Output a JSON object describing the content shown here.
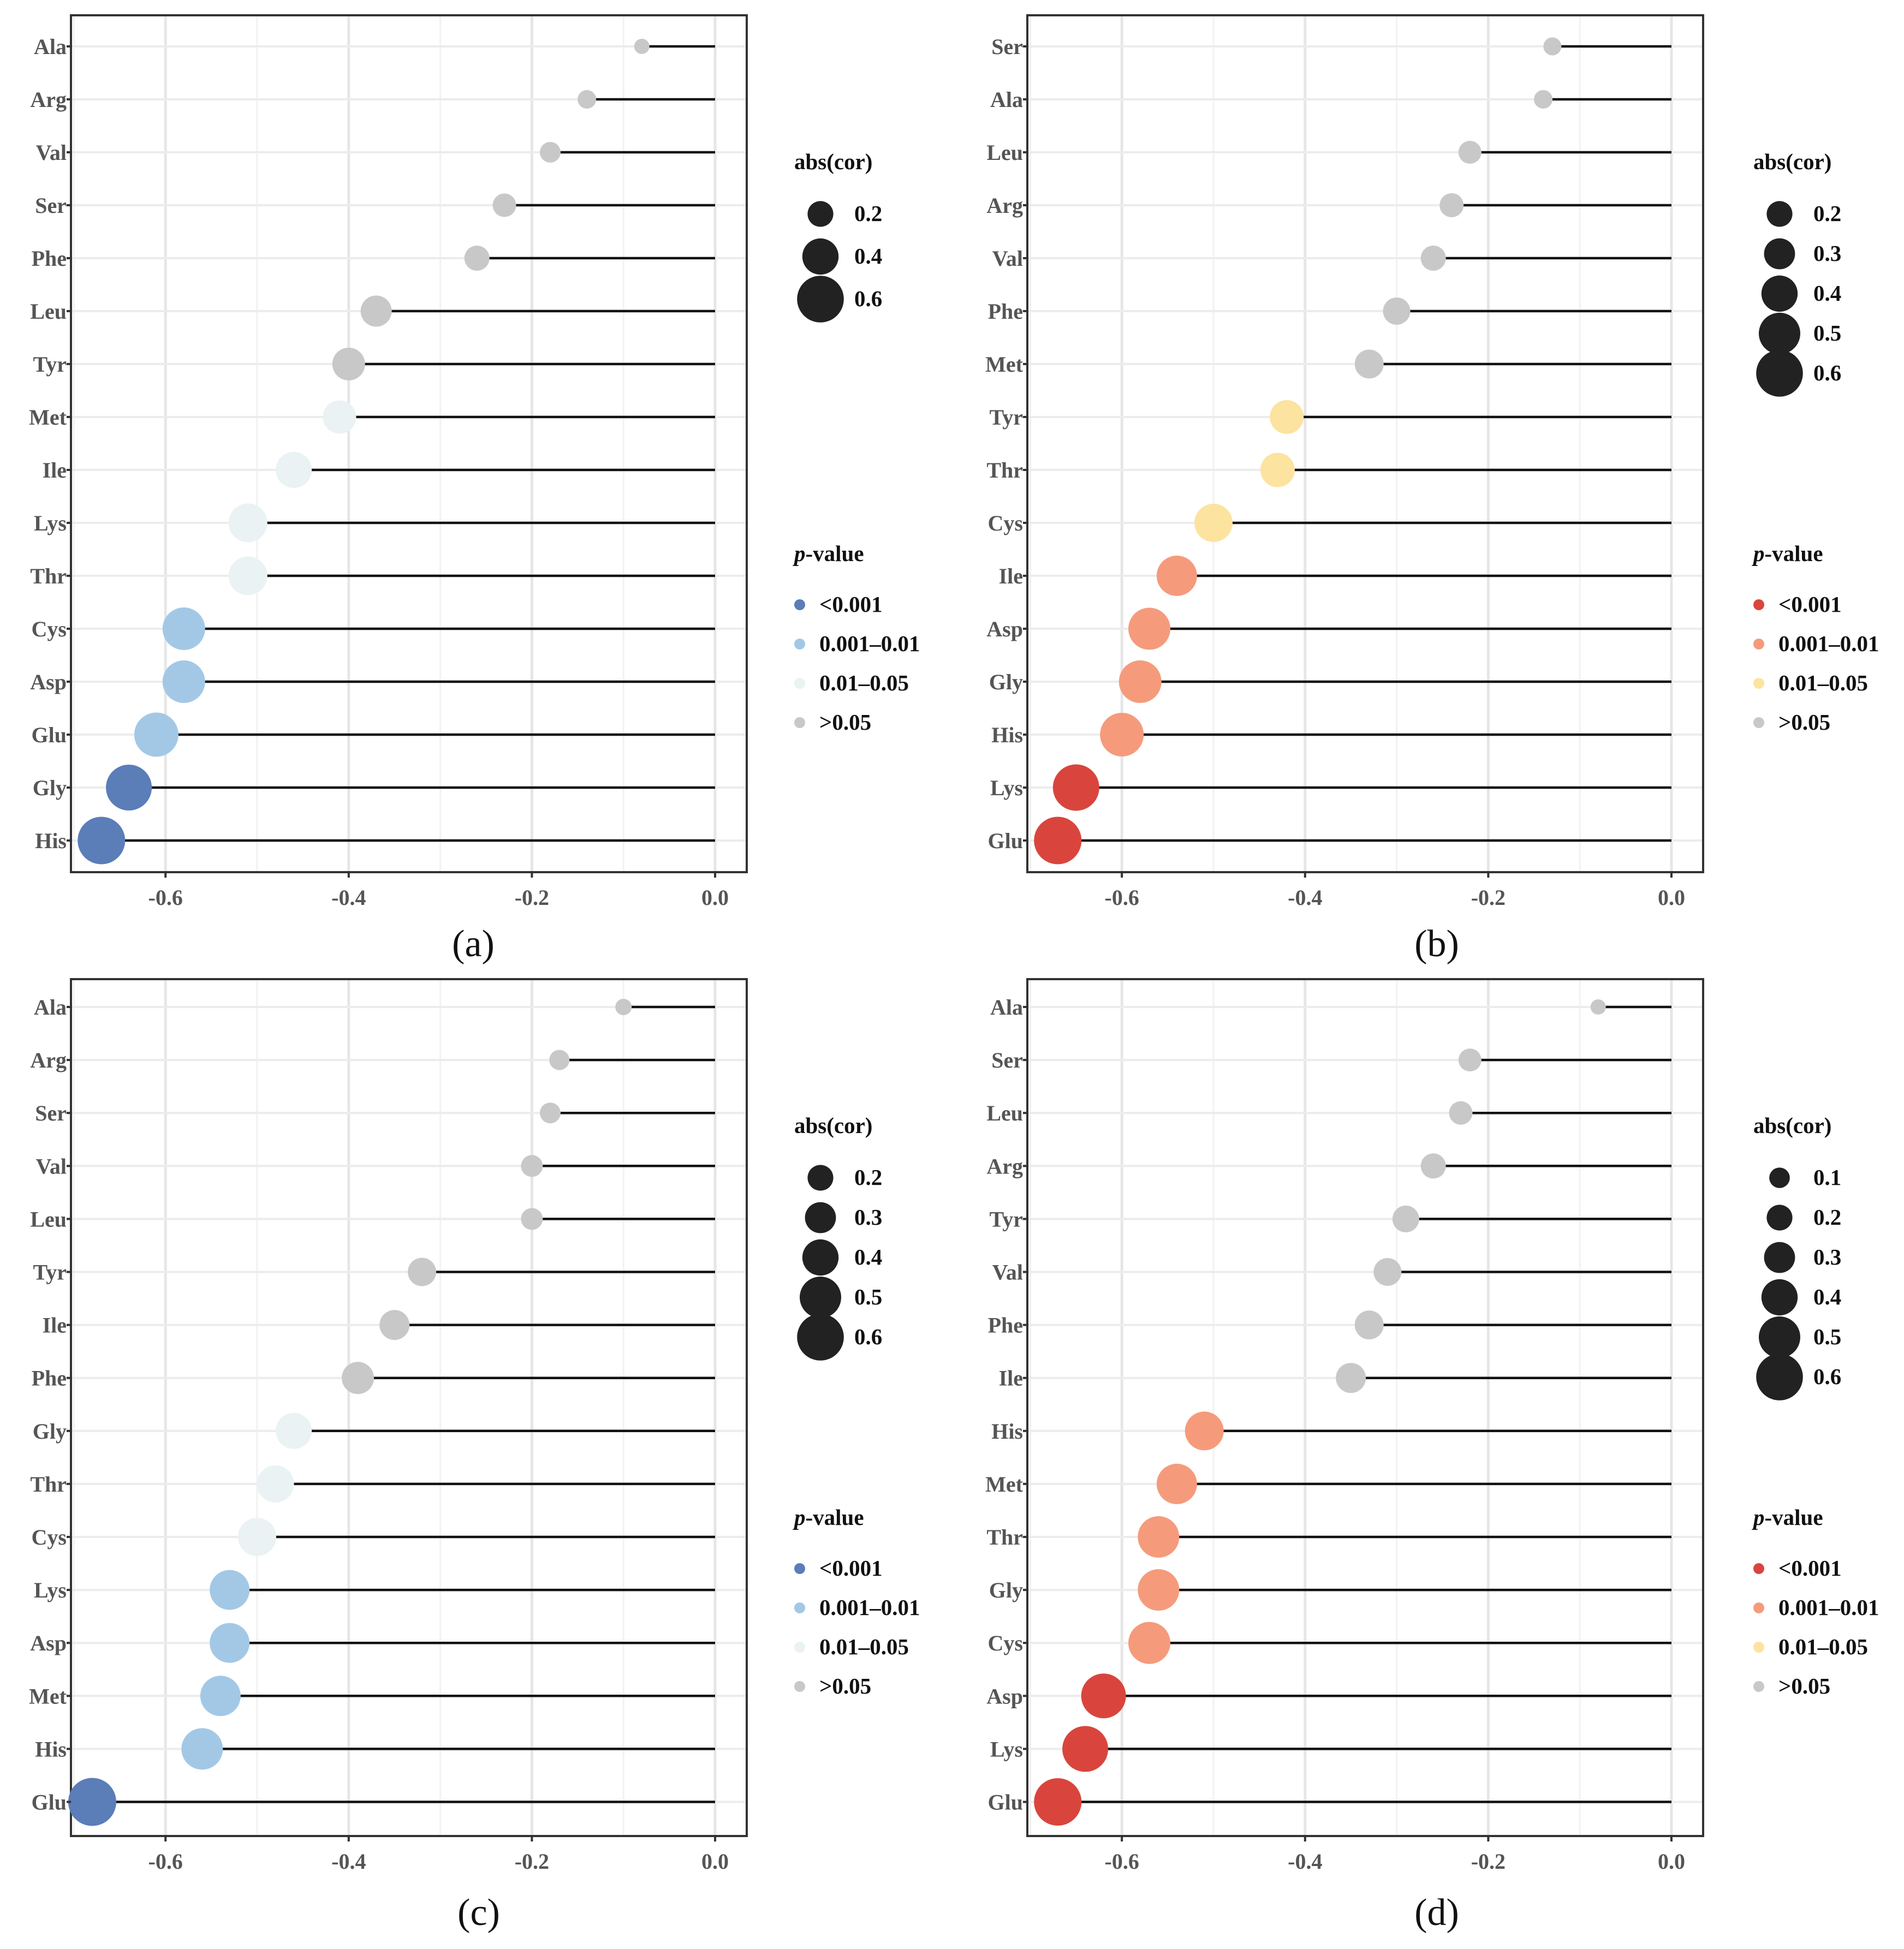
{
  "chart_data": [
    {
      "panel": "(a)",
      "type": "scatter",
      "xlim": [
        -0.7,
        0.0
      ],
      "xticks": [
        "-0.6",
        "-0.4",
        "-0.2",
        "0.0"
      ],
      "categories": [
        "Ala",
        "Arg",
        "Val",
        "Ser",
        "Phe",
        "Leu",
        "Tyr",
        "Met",
        "Ile",
        "Lys",
        "Thr",
        "Cys",
        "Asp",
        "Glu",
        "Gly",
        "His"
      ],
      "values": [
        -0.08,
        -0.14,
        -0.18,
        -0.23,
        -0.26,
        -0.37,
        -0.4,
        -0.41,
        -0.46,
        -0.51,
        -0.51,
        -0.58,
        -0.58,
        -0.61,
        -0.64,
        -0.67
      ],
      "pclass": [
        3,
        3,
        3,
        3,
        3,
        3,
        3,
        2,
        2,
        2,
        2,
        1,
        1,
        1,
        0,
        0
      ],
      "size_legend": {
        "title": "abs(cor)",
        "labels": [
          "0.2",
          "0.4",
          "0.6"
        ],
        "levels": [
          0.2,
          0.4,
          0.6
        ]
      },
      "color_legend": {
        "title_italic": "p",
        "title_rest": "-value",
        "labels": [
          "<0.001",
          "0.001–0.01",
          "0.01–0.05",
          ">0.05"
        ],
        "colors": [
          "#5b7db8",
          "#a3c8e6",
          "#eaf2f3",
          "#c8c8c8"
        ]
      }
    },
    {
      "panel": "(b)",
      "type": "scatter",
      "xlim": [
        -0.7,
        0.0
      ],
      "xticks": [
        "-0.6",
        "-0.4",
        "-0.2",
        "0.0"
      ],
      "categories": [
        "Ser",
        "Ala",
        "Leu",
        "Arg",
        "Val",
        "Phe",
        "Met",
        "Tyr",
        "Thr",
        "Cys",
        "Ile",
        "Asp",
        "Gly",
        "His",
        "Lys",
        "Glu"
      ],
      "values": [
        -0.13,
        -0.14,
        -0.22,
        -0.24,
        -0.26,
        -0.3,
        -0.33,
        -0.42,
        -0.43,
        -0.5,
        -0.54,
        -0.57,
        -0.58,
        -0.6,
        -0.65,
        -0.67
      ],
      "pclass": [
        3,
        3,
        3,
        3,
        3,
        3,
        3,
        2,
        2,
        2,
        1,
        1,
        1,
        1,
        0,
        0
      ],
      "size_legend": {
        "title": "abs(cor)",
        "labels": [
          "0.2",
          "0.3",
          "0.4",
          "0.5",
          "0.6"
        ],
        "levels": [
          0.2,
          0.3,
          0.4,
          0.5,
          0.6
        ]
      },
      "color_legend": {
        "title_italic": "p",
        "title_rest": "-value",
        "labels": [
          "<0.001",
          "0.001–0.01",
          "0.01–0.05",
          ">0.05"
        ],
        "colors": [
          "#d9453d",
          "#f59b7c",
          "#fde3a0",
          "#c8c8c8"
        ]
      }
    },
    {
      "panel": "(c)",
      "type": "scatter",
      "xlim": [
        -0.7,
        0.0
      ],
      "xticks": [
        "-0.6",
        "-0.4",
        "-0.2",
        "0.0"
      ],
      "categories": [
        "Ala",
        "Arg",
        "Ser",
        "Val",
        "Leu",
        "Tyr",
        "Ile",
        "Phe",
        "Gly",
        "Thr",
        "Cys",
        "Lys",
        "Asp",
        "Met",
        "His",
        "Glu"
      ],
      "values": [
        -0.1,
        -0.17,
        -0.18,
        -0.2,
        -0.2,
        -0.32,
        -0.35,
        -0.39,
        -0.46,
        -0.48,
        -0.5,
        -0.53,
        -0.53,
        -0.54,
        -0.56,
        -0.68
      ],
      "pclass": [
        3,
        3,
        3,
        3,
        3,
        3,
        3,
        3,
        2,
        2,
        2,
        1,
        1,
        1,
        1,
        0
      ],
      "size_legend": {
        "title": "abs(cor)",
        "labels": [
          "0.2",
          "0.3",
          "0.4",
          "0.5",
          "0.6"
        ],
        "levels": [
          0.2,
          0.3,
          0.4,
          0.5,
          0.6
        ]
      },
      "color_legend": {
        "title_italic": "p",
        "title_rest": "-value",
        "labels": [
          "<0.001",
          "0.001–0.01",
          "0.01–0.05",
          ">0.05"
        ],
        "colors": [
          "#5b7db8",
          "#a3c8e6",
          "#eaf2f3",
          "#c8c8c8"
        ]
      }
    },
    {
      "panel": "(d)",
      "type": "scatter",
      "xlim": [
        -0.7,
        0.0
      ],
      "xticks": [
        "-0.6",
        "-0.4",
        "-0.2",
        "0.0"
      ],
      "categories": [
        "Ala",
        "Ser",
        "Leu",
        "Arg",
        "Tyr",
        "Val",
        "Phe",
        "Ile",
        "His",
        "Met",
        "Thr",
        "Gly",
        "Cys",
        "Asp",
        "Lys",
        "Glu"
      ],
      "values": [
        -0.08,
        -0.22,
        -0.23,
        -0.26,
        -0.29,
        -0.31,
        -0.33,
        -0.35,
        -0.51,
        -0.54,
        -0.56,
        -0.56,
        -0.57,
        -0.62,
        -0.64,
        -0.67
      ],
      "pclass": [
        3,
        3,
        3,
        3,
        3,
        3,
        3,
        3,
        1,
        1,
        1,
        1,
        1,
        0,
        0,
        0
      ],
      "size_legend": {
        "title": "abs(cor)",
        "labels": [
          "0.1",
          "0.2",
          "0.3",
          "0.4",
          "0.5",
          "0.6"
        ],
        "levels": [
          0.1,
          0.2,
          0.3,
          0.4,
          0.5,
          0.6
        ]
      },
      "color_legend": {
        "title_italic": "p",
        "title_rest": "-value",
        "labels": [
          "<0.001",
          "0.001–0.01",
          "0.01–0.05",
          ">0.05"
        ],
        "colors": [
          "#d9453d",
          "#f59b7c",
          "#fde3a0",
          "#c8c8c8"
        ]
      }
    }
  ]
}
